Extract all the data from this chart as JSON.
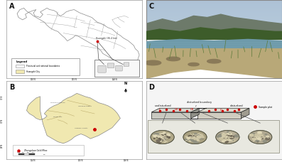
{
  "bg_color": "#ffffff",
  "border_gray": "#cccccc",
  "text_color": "#222222",
  "red_color": "#cc0000",
  "light_yellow": "#f0e8b0",
  "panel_a_bg": "#ffffff",
  "panel_b_bg": "#ffffff",
  "panel_b_fill": "#f0e8b0",
  "panel_c_sky": "#b8cdd8",
  "panel_c_mountain": "#6e7d60",
  "panel_c_veg": "#4a6535",
  "panel_c_water": "#7a9faf",
  "panel_c_ground": "#c8b898",
  "panel_d_bg": "#f0f0f0",
  "block_top_left": "#d8d8d8",
  "block_top_right": "#e8e4d8",
  "block_side": "#1a1a1a",
  "block_face_left": "#b0b0b0",
  "block_face_right": "#c8c4b8",
  "china_outline": "#888888",
  "province_line": "#999999"
}
